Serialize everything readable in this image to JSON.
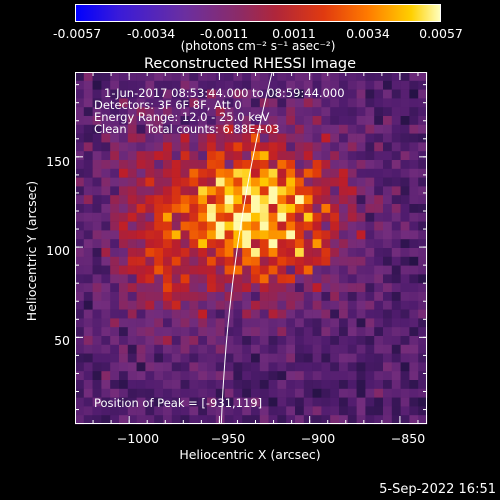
{
  "colorbar": {
    "tick_labels": [
      "-0.0057",
      "-0.0034",
      "-0.0011",
      "0.0011",
      "0.0034",
      "0.0057"
    ],
    "range": [
      -0.0057,
      0.0057
    ],
    "units_label": "(photons cm⁻² s⁻¹ asec⁻²)"
  },
  "chart_data": {
    "type": "heatmap",
    "title": "Reconstructed RHESSI Image",
    "xlabel": "Heliocentric X (arcsec)",
    "ylabel": "Heliocentric Y (arcsec)",
    "xlim": [
      -1030,
      -835
    ],
    "ylim": [
      2,
      197
    ],
    "xticks": [
      -1000,
      -950,
      -900,
      -850
    ],
    "xtick_labels": [
      "−1000",
      "−950",
      "−900",
      "−850"
    ],
    "yticks": [
      50,
      100,
      150
    ],
    "ytick_labels": [
      "50",
      "100",
      "150"
    ],
    "grid_cells": [
      40,
      40
    ],
    "peak": [
      -931,
      119
    ],
    "colormap": "rainbow-violet-to-yellow"
  },
  "annotations": {
    "time_range": "1-Jun-2017 08:53:44.000 to 08:59:44.000",
    "detectors": "Detectors: 3F 6F 8F, Att 0",
    "energy": "Energy Range: 12.0 - 25.0 keV",
    "clean": "Clean",
    "counts": "Total counts: 6.88E+03",
    "peak_label": "Position of Peak = [-931,119]"
  },
  "footer": {
    "date": "5-Sep-2022 16:51"
  }
}
